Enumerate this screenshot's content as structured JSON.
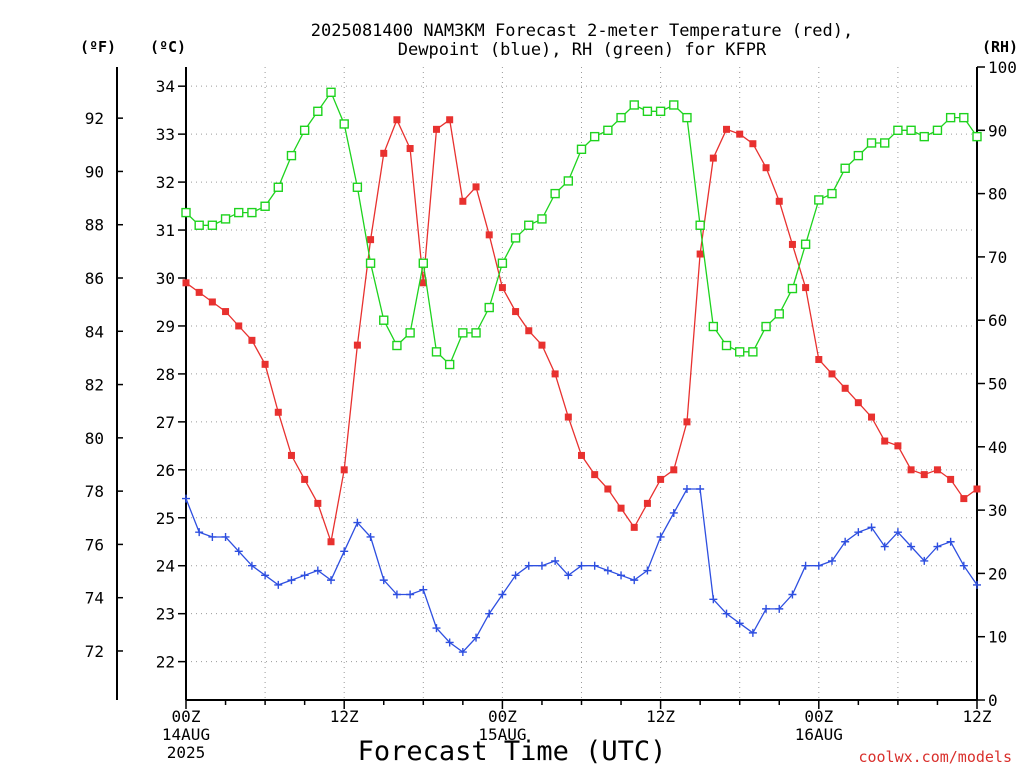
{
  "chart_data": {
    "type": "line",
    "title_lines": [
      "2025081400 NAM3KM Forecast 2-meter Temperature (red),",
      "Dewpoint (blue), RH (green) for KFPR"
    ],
    "xlabel": "Forecast Time (UTC)",
    "x_hours_range": [
      0,
      60
    ],
    "x_ticks": [
      {
        "hour": 0,
        "lines": [
          "00Z",
          "14AUG",
          "2025"
        ]
      },
      {
        "hour": 12,
        "lines": [
          "12Z"
        ]
      },
      {
        "hour": 24,
        "lines": [
          "00Z",
          "15AUG"
        ]
      },
      {
        "hour": 36,
        "lines": [
          "12Z"
        ]
      },
      {
        "hour": 48,
        "lines": [
          "00Z",
          "16AUG"
        ]
      },
      {
        "hour": 60,
        "lines": [
          "12Z"
        ]
      }
    ],
    "axis_units": {
      "f": "(ºF)",
      "c": "(ºC)",
      "rh": "(RH)"
    },
    "celsius_axis": {
      "range": [
        21.2,
        34.4
      ],
      "ticks": [
        22,
        23,
        24,
        25,
        26,
        27,
        28,
        29,
        30,
        31,
        32,
        33,
        34
      ]
    },
    "fahrenheit_axis": {
      "ticks": [
        72,
        74,
        76,
        78,
        80,
        82,
        84,
        86,
        88,
        90,
        92
      ]
    },
    "rh_axis": {
      "range": [
        0,
        100
      ],
      "ticks": [
        0,
        10,
        20,
        30,
        40,
        50,
        60,
        70,
        80,
        90,
        100
      ]
    },
    "grid": true,
    "credit": "coolwx.com/models",
    "colors": {
      "temperature": "#e8312f",
      "dewpoint": "#2e4fe0",
      "rh": "#1ed31e"
    },
    "series": [
      {
        "name": "2-meter Temperature (°C)",
        "axis": "celsius",
        "x_hours": [
          0,
          1,
          2,
          3,
          4,
          5,
          6,
          7,
          8,
          9,
          10,
          11,
          12,
          13,
          14,
          15,
          16,
          17,
          18,
          19,
          20,
          21,
          22,
          23,
          24,
          25,
          26,
          27,
          28,
          29,
          30,
          31,
          32,
          33,
          34,
          35,
          36,
          37,
          38,
          39,
          40,
          41,
          42,
          43,
          44,
          45,
          46,
          47,
          48,
          49,
          50,
          51,
          52,
          53,
          54,
          55,
          56,
          57,
          58,
          59,
          60
        ],
        "values": [
          29.9,
          29.7,
          29.5,
          29.3,
          29.0,
          28.7,
          28.2,
          27.2,
          26.3,
          25.8,
          25.3,
          24.5,
          26.0,
          28.6,
          30.8,
          32.6,
          33.3,
          32.7,
          29.9,
          33.1,
          33.3,
          31.6,
          31.9,
          30.9,
          29.8,
          29.3,
          28.9,
          28.6,
          28.0,
          27.1,
          26.3,
          25.9,
          25.6,
          25.2,
          24.8,
          25.3,
          25.8,
          26.0,
          27.0,
          30.5,
          32.5,
          33.1,
          33.0,
          32.8,
          32.3,
          31.6,
          30.7,
          29.8,
          28.3,
          28.0,
          27.7,
          27.4,
          27.1,
          26.6,
          26.5,
          26.0,
          25.9,
          26.0,
          25.8,
          25.4,
          25.6
        ]
      },
      {
        "name": "Dewpoint (°C)",
        "axis": "celsius",
        "x_hours": [
          0,
          1,
          2,
          3,
          4,
          5,
          6,
          7,
          8,
          9,
          10,
          11,
          12,
          13,
          14,
          15,
          16,
          17,
          18,
          19,
          20,
          21,
          22,
          23,
          24,
          25,
          26,
          27,
          28,
          29,
          30,
          31,
          32,
          33,
          34,
          35,
          36,
          37,
          38,
          39,
          40,
          41,
          42,
          43,
          44,
          45,
          46,
          47,
          48,
          49,
          50,
          51,
          52,
          53,
          54,
          55,
          56,
          57,
          58,
          59,
          60
        ],
        "values": [
          25.4,
          24.7,
          24.6,
          24.6,
          24.3,
          24.0,
          23.8,
          23.6,
          23.7,
          23.8,
          23.9,
          23.7,
          24.3,
          24.9,
          24.6,
          23.7,
          23.4,
          23.4,
          23.5,
          22.7,
          22.4,
          22.2,
          22.5,
          23.0,
          23.4,
          23.8,
          24.0,
          24.0,
          24.1,
          23.8,
          24.0,
          24.0,
          23.9,
          23.8,
          23.7,
          23.9,
          24.6,
          25.1,
          25.6,
          25.6,
          23.3,
          23.0,
          22.8,
          22.6,
          23.1,
          23.1,
          23.4,
          24.0,
          24.0,
          24.1,
          24.5,
          24.7,
          24.8,
          24.4,
          24.7,
          24.4,
          24.1,
          24.4,
          24.5,
          24.0,
          23.6
        ]
      },
      {
        "name": "RH (%)",
        "axis": "rh",
        "x_hours": [
          0,
          1,
          2,
          3,
          4,
          5,
          6,
          7,
          8,
          9,
          10,
          11,
          12,
          13,
          14,
          15,
          16,
          17,
          18,
          19,
          20,
          21,
          22,
          23,
          24,
          25,
          26,
          27,
          28,
          29,
          30,
          31,
          32,
          33,
          34,
          35,
          36,
          37,
          38,
          39,
          40,
          41,
          42,
          43,
          44,
          45,
          46,
          47,
          48,
          49,
          50,
          51,
          52,
          53,
          54,
          55,
          56,
          57,
          58,
          59,
          60
        ],
        "values": [
          77,
          75,
          75,
          76,
          77,
          77,
          78,
          81,
          86,
          90,
          93,
          96,
          91,
          81,
          69,
          60,
          56,
          58,
          69,
          55,
          53,
          58,
          58,
          62,
          69,
          73,
          75,
          76,
          80,
          82,
          87,
          89,
          90,
          92,
          94,
          93,
          93,
          94,
          92,
          75,
          59,
          56,
          55,
          55,
          59,
          61,
          65,
          72,
          79,
          80,
          84,
          86,
          88,
          88,
          90,
          90,
          89,
          90,
          92,
          92,
          89
        ]
      }
    ]
  }
}
